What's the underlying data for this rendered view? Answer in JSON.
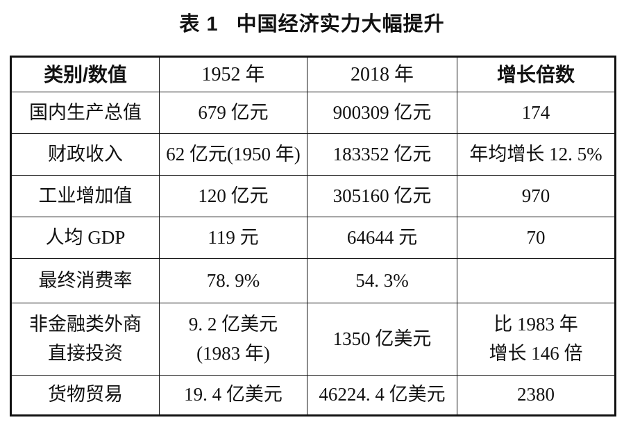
{
  "page": {
    "background_color": "#ffffff",
    "text_color": "#111111",
    "border_color": "#111111"
  },
  "title": {
    "label": "表 1",
    "text": "中国经济实力大幅提升"
  },
  "table": {
    "headers": [
      {
        "label": "类别/数值",
        "emphasis": true
      },
      {
        "label": "1952 年",
        "emphasis": false
      },
      {
        "label": "2018 年",
        "emphasis": false
      },
      {
        "label": "增长倍数",
        "emphasis": true
      }
    ],
    "rows": [
      {
        "cells": [
          "国内生产总值",
          "679 亿元",
          "900309 亿元",
          "174"
        ]
      },
      {
        "cells": [
          "财政收入",
          "62 亿元(1950 年)",
          "183352 亿元",
          "年均增长 12. 5%"
        ]
      },
      {
        "cells": [
          "工业增加值",
          "120 亿元",
          "305160 亿元",
          "970"
        ]
      },
      {
        "cells": [
          "人均 GDP",
          "119 元",
          "64644 元",
          "70"
        ]
      },
      {
        "cells": [
          "最终消费率",
          "78. 9%",
          "54. 3%",
          ""
        ]
      },
      {
        "cells": [
          "非金融类外商\n直接投资",
          "9. 2 亿美元\n(1983 年)",
          "1350 亿美元",
          "比 1983 年\n增长 146 倍"
        ]
      },
      {
        "cells": [
          "货物贸易",
          "19. 4 亿美元",
          "46224. 4 亿美元",
          "2380"
        ]
      }
    ]
  }
}
